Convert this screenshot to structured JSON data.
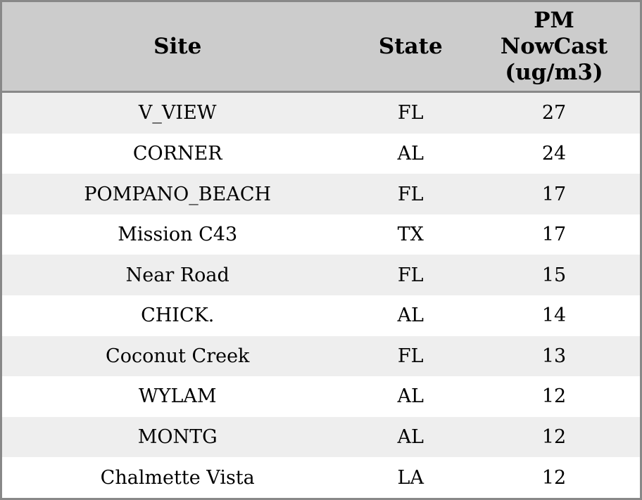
{
  "chart_data": {
    "type": "table",
    "columns": [
      {
        "id": "site",
        "label": "Site"
      },
      {
        "id": "state",
        "label": "State"
      },
      {
        "id": "pm_nowcast",
        "label": "PM\nNowCast\n(ug/m3)"
      }
    ],
    "rows": [
      {
        "site": "V_VIEW",
        "state": "FL",
        "pm_nowcast": 27
      },
      {
        "site": "CORNER",
        "state": "AL",
        "pm_nowcast": 24
      },
      {
        "site": "POMPANO_BEACH",
        "state": "FL",
        "pm_nowcast": 17
      },
      {
        "site": "Mission C43",
        "state": "TX",
        "pm_nowcast": 17
      },
      {
        "site": "Near Road",
        "state": "FL",
        "pm_nowcast": 15
      },
      {
        "site": "CHICK.",
        "state": "AL",
        "pm_nowcast": 14
      },
      {
        "site": "Coconut Creek",
        "state": "FL",
        "pm_nowcast": 13
      },
      {
        "site": "WYLAM",
        "state": "AL",
        "pm_nowcast": 12
      },
      {
        "site": "MONTG",
        "state": "AL",
        "pm_nowcast": 12
      },
      {
        "site": "Chalmette Vista",
        "state": "LA",
        "pm_nowcast": 12
      }
    ]
  },
  "colors": {
    "header_bg": "#cccccc",
    "row_stripe": "#eeeeee",
    "row_plain": "#ffffff",
    "border": "#888888",
    "text": "#000000"
  }
}
